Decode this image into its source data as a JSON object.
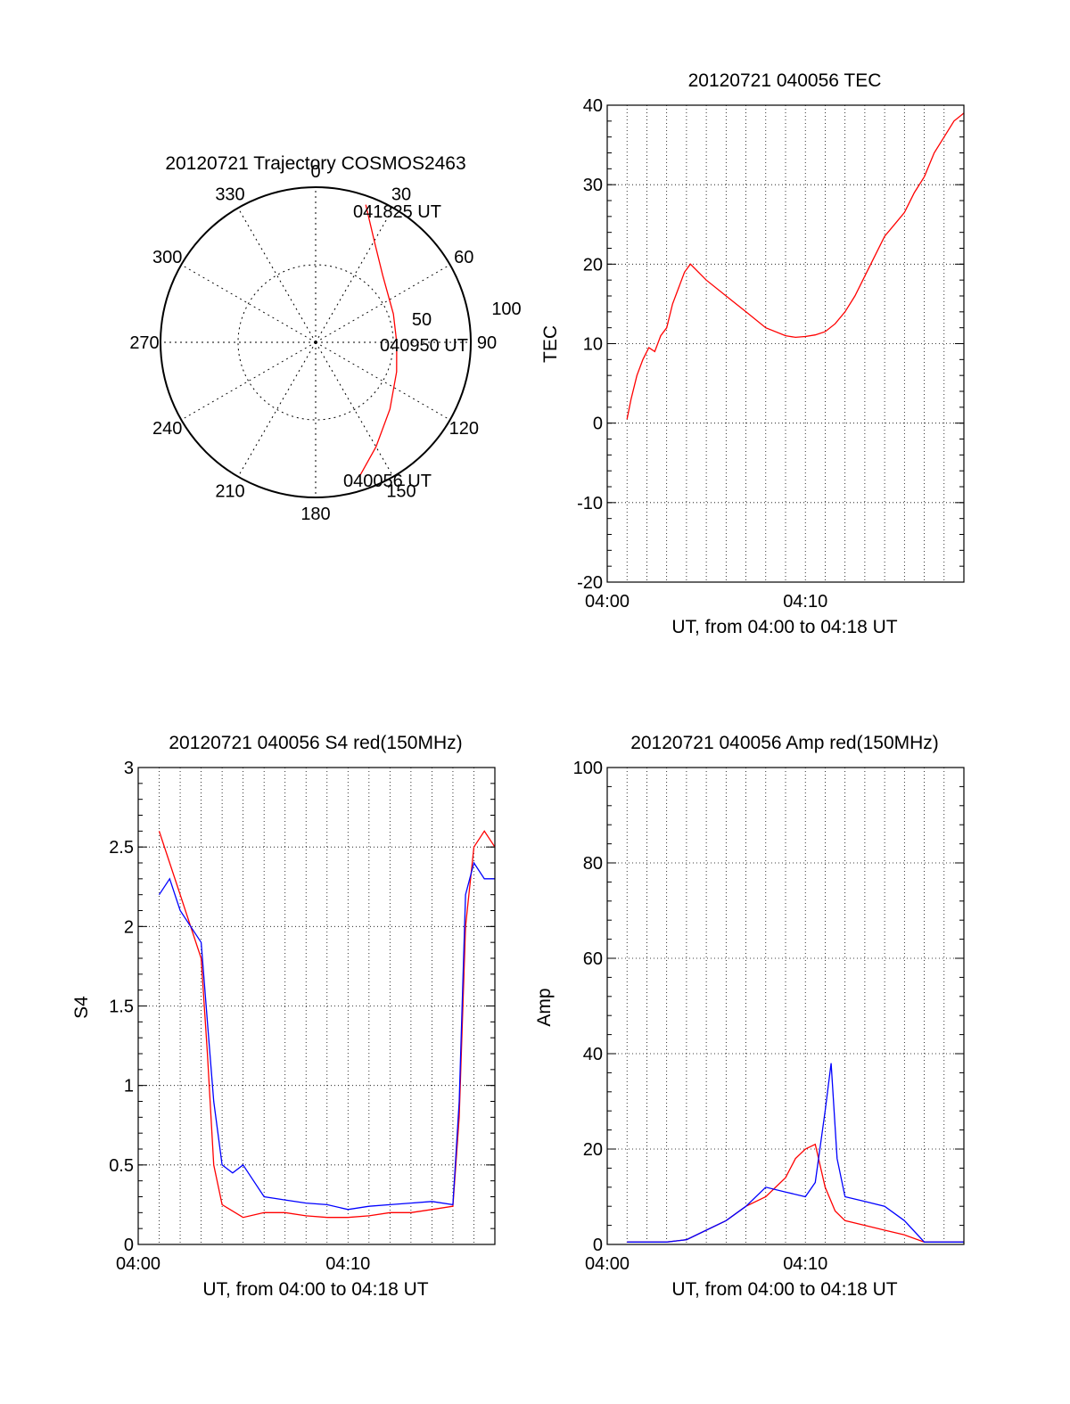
{
  "chart_data": [
    {
      "type": "polar",
      "title": "20120721 Trajectory COSMOS2463",
      "angle_labels": [
        "0",
        "30",
        "60",
        "90",
        "120",
        "150",
        "180",
        "210",
        "240",
        "270",
        "300",
        "330"
      ],
      "radial_labels": [
        "50",
        "100"
      ],
      "rlim": [
        0,
        100
      ],
      "grid": true,
      "series": [
        {
          "color": "#ff0000",
          "points": [
            {
              "azimuth": 20,
              "elevation": 5
            },
            {
              "azimuth": 30,
              "elevation": 22
            },
            {
              "azimuth": 45,
              "elevation": 35
            },
            {
              "azimuth": 70,
              "elevation": 42
            },
            {
              "azimuth": 90,
              "elevation": 43
            },
            {
              "azimuth": 110,
              "elevation": 40
            },
            {
              "azimuth": 132,
              "elevation": 32
            },
            {
              "azimuth": 150,
              "elevation": 20
            },
            {
              "azimuth": 162,
              "elevation": 8
            }
          ]
        }
      ],
      "annotations": [
        "041825 UT",
        "040950 UT",
        "040056 UT"
      ]
    },
    {
      "type": "line",
      "title": "20120721 040056 TEC",
      "xlabel": "UT, from 04:00 to 04:18 UT",
      "ylabel": "TEC",
      "xlim": [
        0,
        18
      ],
      "ylim": [
        -20,
        40
      ],
      "x_unit": "minutes after 04:00",
      "xticks": [
        "04:00",
        "04:10"
      ],
      "yticks": [
        "-20",
        "-10",
        "0",
        "10",
        "20",
        "30",
        "40"
      ],
      "grid": true,
      "series": [
        {
          "color": "#ff0000",
          "x": [
            1.0,
            1.2,
            1.5,
            1.8,
            2.1,
            2.4,
            2.7,
            3.0,
            3.3,
            3.6,
            3.9,
            4.2,
            5.0,
            6.0,
            7.0,
            8.0,
            9.0,
            9.5,
            10.0,
            10.5,
            11.0,
            11.5,
            12.0,
            12.5,
            13.0,
            13.5,
            14.0,
            14.5,
            15.0,
            15.5,
            16.0,
            16.5,
            17.0,
            17.5,
            18.0
          ],
          "y": [
            0.5,
            3,
            6,
            8,
            9.5,
            9,
            11,
            12,
            15,
            17,
            19,
            20,
            18,
            16,
            14,
            12,
            11,
            10.8,
            10.9,
            11.1,
            11.5,
            12.5,
            14,
            16,
            18.5,
            21,
            23.5,
            25,
            26.5,
            29,
            31,
            34,
            36,
            38,
            39
          ]
        }
      ]
    },
    {
      "type": "line",
      "title": "20120721 040056 S4 red(150MHz)",
      "xlabel": "UT, from 04:00 to 04:18 UT",
      "ylabel": "S4",
      "xlim": [
        0,
        17
      ],
      "ylim": [
        0,
        3
      ],
      "x_unit": "minutes after 04:00",
      "xticks": [
        "04:00",
        "04:10"
      ],
      "yticks": [
        "0",
        "0.5",
        "1",
        "1.5",
        "2",
        "2.5",
        "3"
      ],
      "grid": true,
      "series": [
        {
          "color": "#ff0000",
          "x": [
            1.0,
            1.5,
            2.0,
            2.5,
            3.0,
            3.3,
            3.6,
            4.0,
            5.0,
            6.0,
            7.0,
            8.0,
            9.0,
            10.0,
            11.0,
            12.0,
            13.0,
            14.0,
            15.0,
            15.3,
            15.6,
            16.0,
            16.5,
            17.0
          ],
          "y": [
            2.6,
            2.4,
            2.2,
            2.0,
            1.8,
            1.2,
            0.5,
            0.25,
            0.17,
            0.2,
            0.2,
            0.18,
            0.17,
            0.17,
            0.18,
            0.2,
            0.2,
            0.22,
            0.24,
            0.8,
            2.0,
            2.5,
            2.6,
            2.5
          ]
        },
        {
          "color": "#0000ff",
          "x": [
            1.0,
            1.5,
            2.0,
            2.5,
            3.0,
            3.3,
            3.6,
            4.0,
            4.5,
            5.0,
            5.5,
            6.0,
            7.0,
            8.0,
            9.0,
            10.0,
            11.0,
            12.0,
            13.0,
            14.0,
            15.0,
            15.3,
            15.6,
            16.0,
            16.5,
            17.0
          ],
          "y": [
            2.2,
            2.3,
            2.1,
            2.0,
            1.9,
            1.4,
            0.9,
            0.5,
            0.45,
            0.5,
            0.4,
            0.3,
            0.28,
            0.26,
            0.25,
            0.22,
            0.24,
            0.25,
            0.26,
            0.27,
            0.25,
            0.9,
            2.2,
            2.4,
            2.3,
            2.3
          ]
        }
      ]
    },
    {
      "type": "line",
      "title": "20120721 040056 Amp red(150MHz)",
      "xlabel": "UT, from 04:00 to 04:18 UT",
      "ylabel": "Amp",
      "xlim": [
        0,
        18
      ],
      "ylim": [
        0,
        100
      ],
      "x_unit": "minutes after 04:00",
      "xticks": [
        "04:00",
        "04:10"
      ],
      "yticks": [
        "0",
        "20",
        "40",
        "60",
        "80",
        "100"
      ],
      "grid": true,
      "series": [
        {
          "color": "#ff0000",
          "x": [
            1.0,
            3.0,
            4.0,
            5.0,
            6.0,
            7.0,
            8.0,
            9.0,
            9.5,
            10.0,
            10.5,
            11.0,
            11.5,
            12.0,
            13.0,
            14.0,
            15.0,
            16.0,
            18.0
          ],
          "y": [
            0.5,
            0.5,
            1,
            3,
            5,
            8,
            10,
            14,
            18,
            20,
            21,
            12,
            7,
            5,
            4,
            3,
            2,
            0.5,
            0.5
          ]
        },
        {
          "color": "#0000ff",
          "x": [
            1.0,
            3.0,
            4.0,
            5.0,
            6.0,
            7.0,
            8.0,
            9.0,
            10.0,
            10.5,
            11.0,
            11.3,
            11.6,
            12.0,
            13.0,
            14.0,
            15.0,
            16.0,
            18.0
          ],
          "y": [
            0.5,
            0.5,
            1,
            3,
            5,
            8,
            12,
            11,
            10,
            13,
            28,
            38,
            18,
            10,
            9,
            8,
            5,
            0.5,
            0.5
          ]
        }
      ]
    }
  ]
}
